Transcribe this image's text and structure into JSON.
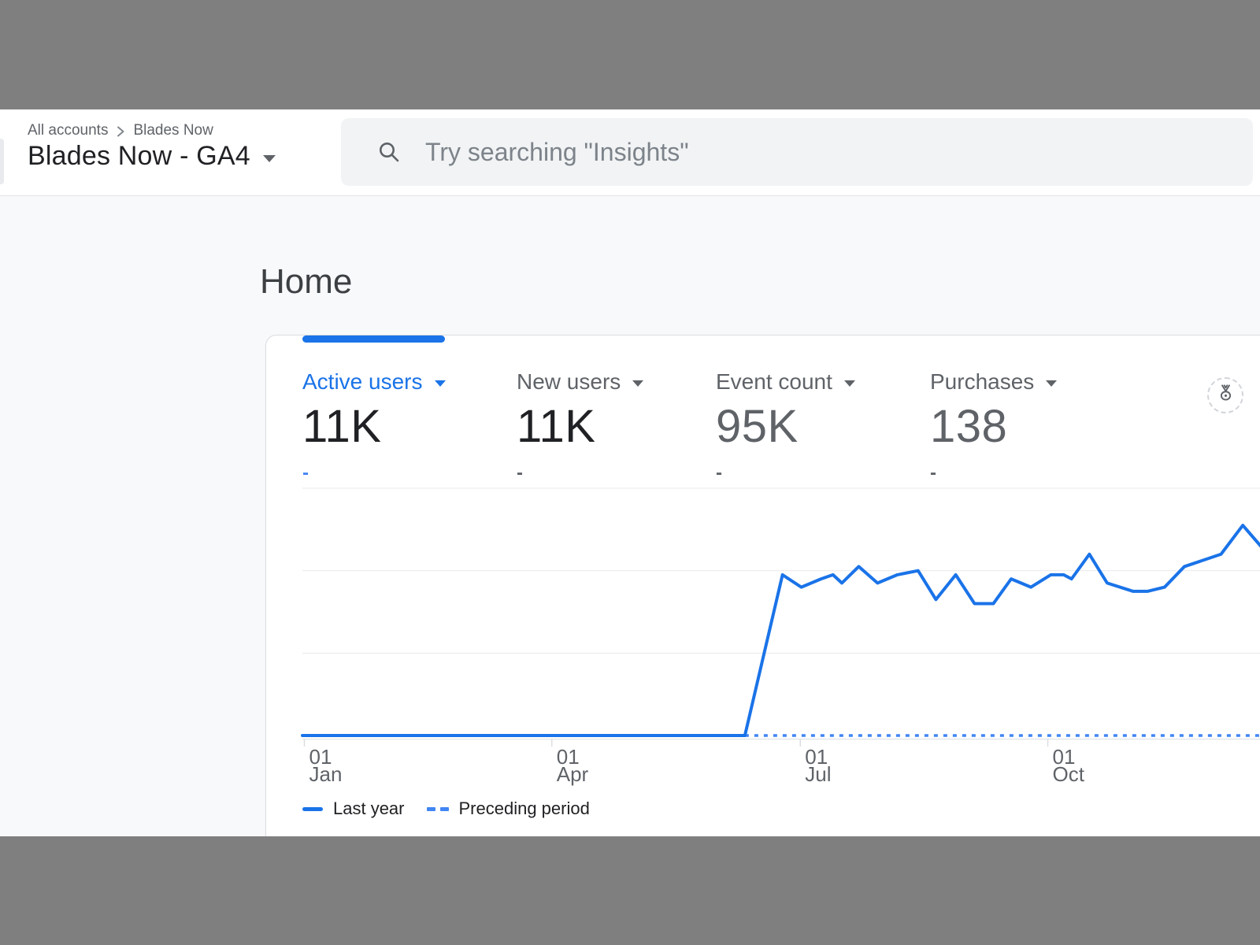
{
  "header": {
    "breadcrumb": {
      "root": "All accounts",
      "current": "Blades Now"
    },
    "property_title": "Blades Now - GA4",
    "search_placeholder": "Try searching \"Insights\""
  },
  "page": {
    "title": "Home"
  },
  "metrics_card": {
    "active_tab_color": "#1a73e8",
    "metrics": [
      {
        "label": "Active users",
        "value": "11K",
        "change": "-",
        "active": true
      },
      {
        "label": "New users",
        "value": "11K",
        "change": "-",
        "active": false
      },
      {
        "label": "Event count",
        "value": "95K",
        "change": "-",
        "active": false
      },
      {
        "label": "Purchases",
        "value": "138",
        "change": "-",
        "active": false
      }
    ],
    "badge_icon": "insights-medal-icon"
  },
  "chart_data": {
    "type": "line",
    "title": "",
    "xlabel": "",
    "ylabel": "",
    "ylim": [
      0,
      60
    ],
    "gridline_values": [
      0,
      20,
      40,
      60
    ],
    "grid": "horizontal-only",
    "legend_position": "bottom-left",
    "x_ticks": [
      {
        "labels": [
          "01",
          "Jan"
        ],
        "frac": 0.002
      },
      {
        "labels": [
          "01",
          "Apr"
        ],
        "frac": 0.252
      },
      {
        "labels": [
          "01",
          "Jul"
        ],
        "frac": 0.503
      },
      {
        "labels": [
          "01",
          "Oct"
        ],
        "frac": 0.753
      }
    ],
    "series": [
      {
        "name": "Last year",
        "style": "solid",
        "color": "#1a73e8",
        "points": [
          [
            0.0,
            0
          ],
          [
            0.447,
            0
          ],
          [
            0.485,
            39
          ],
          [
            0.504,
            36
          ],
          [
            0.524,
            38
          ],
          [
            0.536,
            39
          ],
          [
            0.545,
            37
          ],
          [
            0.562,
            41
          ],
          [
            0.581,
            37
          ],
          [
            0.601,
            39
          ],
          [
            0.622,
            40
          ],
          [
            0.64,
            33
          ],
          [
            0.66,
            39
          ],
          [
            0.679,
            32
          ],
          [
            0.698,
            32
          ],
          [
            0.716,
            38
          ],
          [
            0.736,
            36
          ],
          [
            0.756,
            39
          ],
          [
            0.769,
            39
          ],
          [
            0.777,
            38
          ],
          [
            0.795,
            44
          ],
          [
            0.813,
            37
          ],
          [
            0.839,
            35
          ],
          [
            0.854,
            35
          ],
          [
            0.871,
            36
          ],
          [
            0.891,
            41
          ],
          [
            0.928,
            44
          ],
          [
            0.95,
            51
          ],
          [
            0.968,
            46
          ]
        ]
      },
      {
        "name": "Preceding period",
        "style": "dashed",
        "color": "#4285f4",
        "points": [
          [
            0.447,
            0
          ],
          [
            1.0,
            0
          ]
        ]
      }
    ],
    "colors": {
      "gridline": "#e9eaee",
      "axis": "#dcdee1",
      "tick_label": "#5f6368"
    }
  }
}
